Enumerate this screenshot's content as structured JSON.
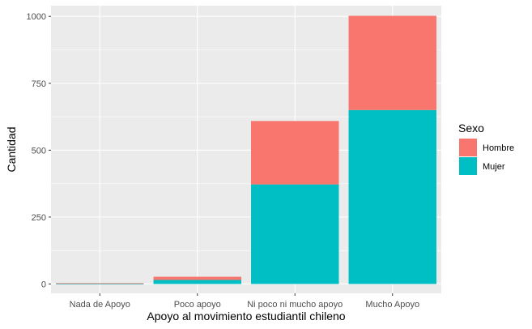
{
  "chart_data": {
    "type": "bar",
    "stacked": true,
    "title": "",
    "xlabel": "Apoyo al movimiento estudiantil chileno",
    "ylabel": "Cantidad",
    "categories": [
      "Nada de Apoyo",
      "Poco apoyo",
      "Ni poco ni mucho apoyo",
      "Mucho Apoyo"
    ],
    "series": [
      {
        "name": "Mujer",
        "values": [
          1,
          15,
          372,
          650
        ],
        "color": "#00BFC4"
      },
      {
        "name": "Hombre",
        "values": [
          2,
          12,
          237,
          352
        ],
        "color": "#F8766D"
      }
    ],
    "ylim": [
      -35,
      1040
    ],
    "yticks": [
      0,
      250,
      500,
      750,
      1000
    ],
    "ytick_labels": [
      "0",
      "250",
      "500",
      "750",
      "1000"
    ],
    "grid": true,
    "panel_background": "#EBEBEB",
    "grid_color": "#FFFFFF",
    "legend": {
      "title": "Sexo",
      "position": "right",
      "items": [
        {
          "label": "Hombre",
          "color": "#F8766D"
        },
        {
          "label": "Mujer",
          "color": "#00BFC4"
        }
      ]
    }
  }
}
